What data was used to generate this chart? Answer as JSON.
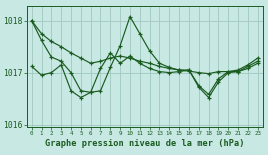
{
  "title": "Graphe pression niveau de la mer (hPa)",
  "bg_color": "#c8e8e4",
  "line_color": "#1a5c20",
  "grid_color": "#a0c8c0",
  "x_values": [
    0,
    1,
    2,
    3,
    4,
    5,
    6,
    7,
    8,
    9,
    10,
    11,
    12,
    13,
    14,
    15,
    16,
    17,
    18,
    19,
    20,
    21,
    22,
    23
  ],
  "series1": [
    1018.0,
    1017.75,
    1017.6,
    1017.5,
    1017.38,
    1017.28,
    1017.18,
    1017.22,
    1017.28,
    1017.32,
    1017.28,
    1017.22,
    1017.18,
    1017.12,
    1017.08,
    1017.05,
    1017.03,
    1017.0,
    1016.98,
    1017.02,
    1017.02,
    1017.02,
    1017.08,
    1017.18
  ],
  "series2": [
    1018.0,
    1017.62,
    1017.3,
    1017.22,
    1017.0,
    1016.65,
    1016.62,
    1016.65,
    1017.1,
    1017.52,
    1018.08,
    1017.75,
    1017.42,
    1017.18,
    1017.1,
    1017.05,
    1017.05,
    1016.75,
    1016.58,
    1016.88,
    1017.02,
    1017.05,
    1017.15,
    1017.28
  ],
  "series3": [
    1017.12,
    1016.95,
    1017.0,
    1017.15,
    1016.65,
    1016.52,
    1016.62,
    1017.08,
    1017.38,
    1017.18,
    1017.32,
    1017.18,
    1017.08,
    1017.02,
    1017.0,
    1017.02,
    1017.05,
    1016.72,
    1016.52,
    1016.82,
    1017.0,
    1017.02,
    1017.12,
    1017.22
  ],
  "ylim_min": 1015.95,
  "ylim_max": 1018.28,
  "yticks": [
    1016,
    1017,
    1018
  ],
  "xlim_min": -0.5,
  "xlim_max": 23.5,
  "figw": 2.68,
  "figh": 1.55,
  "dpi": 100
}
